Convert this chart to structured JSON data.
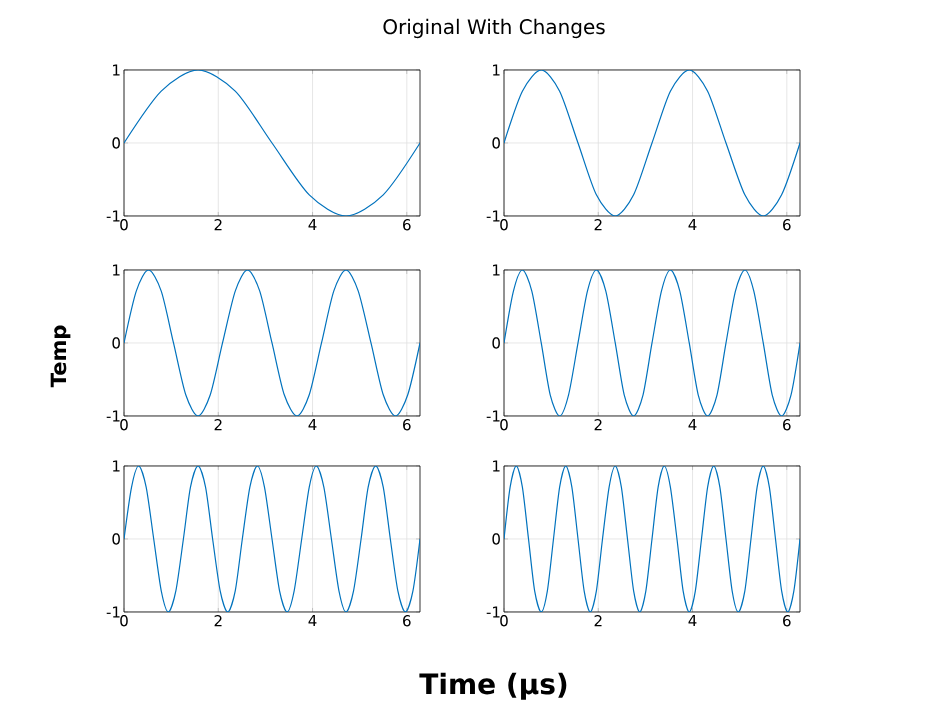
{
  "chart_data": [
    {
      "type": "line",
      "title": "Original With Changes",
      "color": "#0072bd",
      "marker": "none",
      "grid": true,
      "xlim": [
        0,
        6.28
      ],
      "xticks": [
        0,
        2,
        4,
        6
      ],
      "ylim": [
        -1,
        1
      ],
      "yticks": [
        -1,
        0,
        1
      ],
      "x": [
        0,
        0.79,
        1.57,
        2.36,
        3.14,
        3.93,
        4.71,
        5.5,
        6.28
      ],
      "values": [
        0,
        0.71,
        1,
        0.71,
        0,
        -0.71,
        -1,
        -0.71,
        0
      ]
    },
    {
      "type": "line",
      "color": "#0072bd",
      "marker": "none",
      "grid": true,
      "xlim": [
        0,
        6.28
      ],
      "xticks": [
        0,
        2,
        4,
        6
      ],
      "ylim": [
        -1,
        1
      ],
      "yticks": [
        -1,
        0,
        1
      ],
      "x": [
        0,
        0.39,
        0.79,
        1.18,
        1.57,
        1.96,
        2.36,
        2.75,
        3.14,
        3.53,
        3.93,
        4.32,
        4.71,
        5.11,
        5.5,
        5.89,
        6.28
      ],
      "values": [
        0,
        0.71,
        1,
        0.71,
        0,
        -0.71,
        -1,
        -0.71,
        0,
        0.71,
        1,
        0.71,
        0,
        -0.71,
        -1,
        -0.71,
        0
      ]
    },
    {
      "type": "line",
      "ylabel": "Temp",
      "color": "#0072bd",
      "marker": "none",
      "grid": true,
      "xlim": [
        0,
        6.28
      ],
      "xticks": [
        0,
        2,
        4,
        6
      ],
      "ylim": [
        -1,
        1
      ],
      "yticks": [
        -1,
        0,
        1
      ],
      "x": [
        0,
        0.26,
        0.52,
        0.79,
        1.05,
        1.31,
        1.57,
        1.83,
        2.09,
        2.36,
        2.62,
        2.88,
        3.14,
        3.4,
        3.67,
        3.93,
        4.19,
        4.45,
        4.71,
        4.97,
        5.24,
        5.5,
        5.76,
        6.02,
        6.28
      ],
      "values": [
        0,
        0.71,
        1,
        0.71,
        0,
        -0.71,
        -1,
        -0.71,
        0,
        0.71,
        1,
        0.71,
        0,
        -0.71,
        -1,
        -0.71,
        0,
        0.71,
        1,
        0.71,
        0,
        -0.71,
        -1,
        -0.71,
        0
      ]
    },
    {
      "type": "line",
      "color": "#0072bd",
      "marker": "none",
      "grid": true,
      "xlim": [
        0,
        6.28
      ],
      "xticks": [
        0,
        2,
        4,
        6
      ],
      "ylim": [
        -1,
        1
      ],
      "yticks": [
        -1,
        0,
        1
      ],
      "x": [
        0,
        0.2,
        0.39,
        0.59,
        0.79,
        0.98,
        1.18,
        1.37,
        1.57,
        1.77,
        1.96,
        2.16,
        2.36,
        2.55,
        2.75,
        2.95,
        3.14,
        3.34,
        3.53,
        3.73,
        3.93,
        4.12,
        4.32,
        4.52,
        4.71,
        4.91,
        5.11,
        5.3,
        5.5,
        5.69,
        5.89,
        6.09,
        6.28
      ],
      "values": [
        0,
        0.71,
        1,
        0.71,
        0,
        -0.71,
        -1,
        -0.71,
        0,
        0.71,
        1,
        0.71,
        0,
        -0.71,
        -1,
        -0.71,
        0,
        0.71,
        1,
        0.71,
        0,
        -0.71,
        -1,
        -0.71,
        0,
        0.71,
        1,
        0.71,
        0,
        -0.71,
        -1,
        -0.71,
        0
      ]
    },
    {
      "type": "line",
      "xlabel": "Time (μs)",
      "color": "#0072bd",
      "marker": "none",
      "grid": true,
      "xlim": [
        0,
        6.28
      ],
      "xticks": [
        0,
        2,
        4,
        6
      ],
      "ylim": [
        -1,
        1
      ],
      "yticks": [
        -1,
        0,
        1
      ],
      "x": [
        0,
        0.16,
        0.31,
        0.47,
        0.63,
        0.79,
        0.94,
        1.1,
        1.26,
        1.41,
        1.57,
        1.73,
        1.88,
        2.04,
        2.2,
        2.36,
        2.51,
        2.67,
        2.83,
        2.98,
        3.14,
        3.3,
        3.46,
        3.61,
        3.77,
        3.93,
        4.08,
        4.24,
        4.4,
        4.56,
        4.71,
        4.87,
        5.03,
        5.18,
        5.34,
        5.5,
        5.65,
        5.81,
        5.97,
        6.13,
        6.28
      ],
      "values": [
        0,
        0.71,
        1,
        0.71,
        0,
        -0.71,
        -1,
        -0.71,
        0,
        0.71,
        1,
        0.71,
        0,
        -0.71,
        -1,
        -0.71,
        0,
        0.71,
        1,
        0.71,
        0,
        -0.71,
        -1,
        -0.71,
        0,
        0.71,
        1,
        0.71,
        0,
        -0.71,
        -1,
        -0.71,
        0,
        0.71,
        1,
        0.71,
        0,
        -0.71,
        -1,
        -0.71,
        0
      ]
    },
    {
      "type": "line",
      "color": "#0072bd",
      "marker": "none",
      "grid": true,
      "xlim": [
        0,
        6.28
      ],
      "xticks": [
        0,
        2,
        4,
        6
      ],
      "ylim": [
        -1,
        1
      ],
      "yticks": [
        -1,
        0,
        1
      ],
      "x": [
        0,
        0.13,
        0.26,
        0.39,
        0.52,
        0.65,
        0.79,
        0.92,
        1.05,
        1.18,
        1.31,
        1.44,
        1.57,
        1.7,
        1.83,
        1.96,
        2.09,
        2.23,
        2.36,
        2.49,
        2.62,
        2.75,
        2.88,
        3.01,
        3.14,
        3.27,
        3.4,
        3.53,
        3.67,
        3.8,
        3.93,
        4.06,
        4.19,
        4.32,
        4.45,
        4.58,
        4.71,
        4.84,
        4.97,
        5.11,
        5.24,
        5.37,
        5.5,
        5.63,
        5.76,
        5.89,
        6.02,
        6.15,
        6.28
      ],
      "values": [
        0,
        0.71,
        1,
        0.71,
        0,
        -0.71,
        -1,
        -0.71,
        0,
        0.71,
        1,
        0.71,
        0,
        -0.71,
        -1,
        -0.71,
        0,
        0.71,
        1,
        0.71,
        0,
        -0.71,
        -1,
        -0.71,
        0,
        0.71,
        1,
        0.71,
        0,
        -0.71,
        -1,
        -0.71,
        0,
        0.71,
        1,
        0.71,
        0,
        -0.71,
        -1,
        -0.71,
        0,
        0.71,
        1,
        0.71,
        0,
        -0.71,
        -1,
        -0.71,
        0
      ]
    }
  ]
}
